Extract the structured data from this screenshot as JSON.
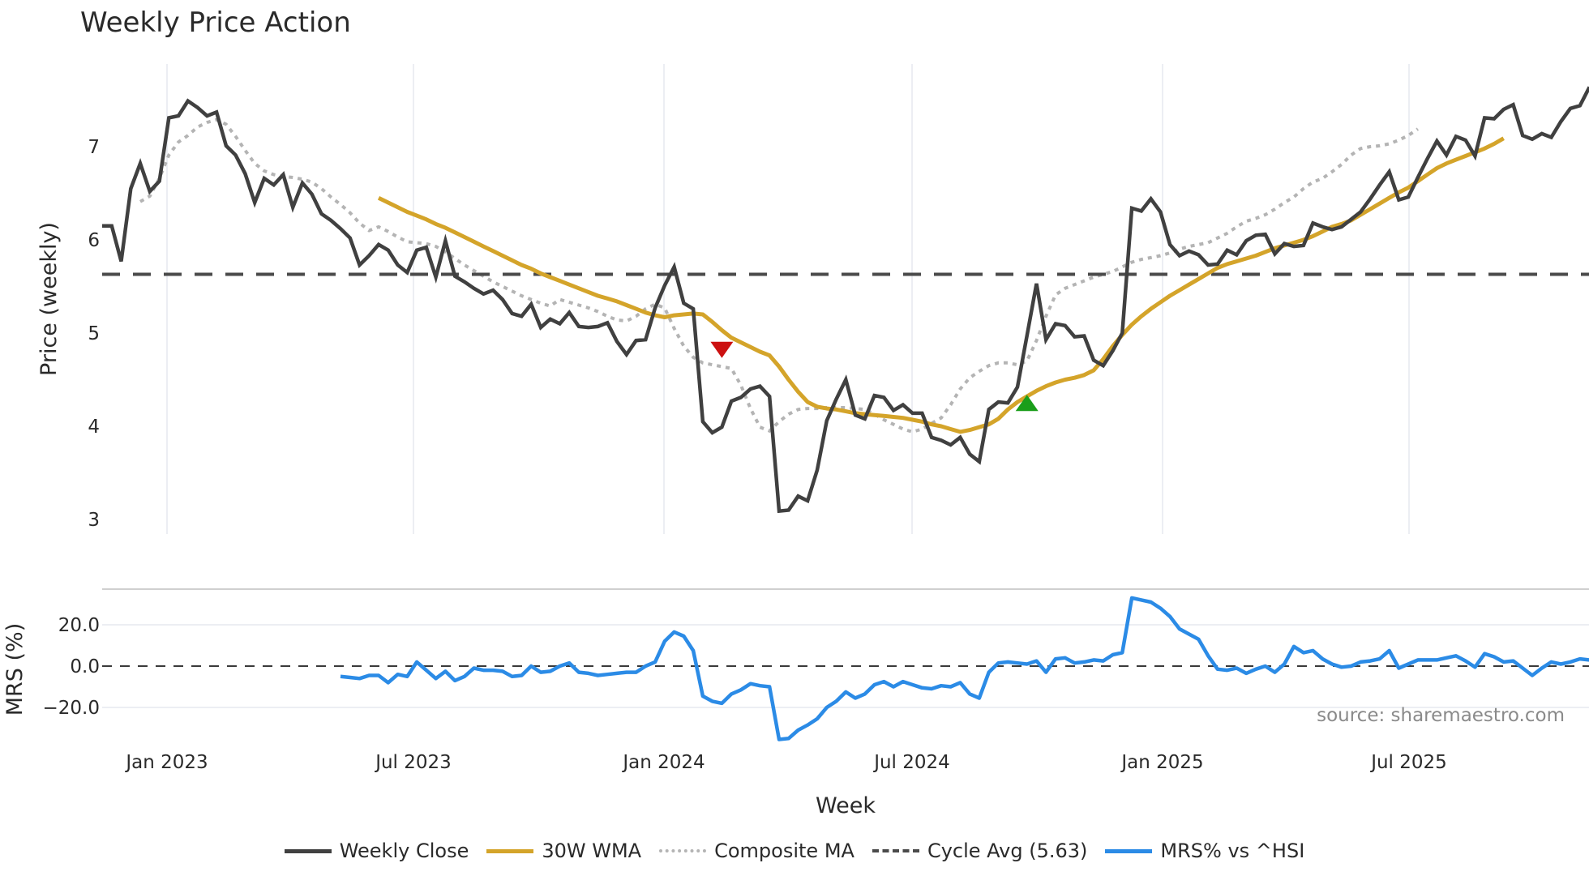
{
  "chart_title": "Weekly Price Action",
  "source_note": "source: sharemaestro.com",
  "colors": {
    "weekly_close": "#404040",
    "wma": "#d4a42a",
    "composite": "#b4b4b4",
    "cycle_avg": "#4a4a4a",
    "mrs": "#2b8be6",
    "sell_marker": "#cc1111",
    "buy_marker": "#1a9e1a",
    "grid": "#eceef3"
  },
  "legend": [
    {
      "key": "weekly_close",
      "label": "Weekly Close",
      "style": "solid"
    },
    {
      "key": "wma",
      "label": "30W WMA",
      "style": "solid"
    },
    {
      "key": "composite",
      "label": "Composite MA",
      "style": "dotted"
    },
    {
      "key": "cycle_avg",
      "label": "Cycle Avg (5.63)",
      "style": "dashed"
    },
    {
      "key": "mrs",
      "label": "MRS% vs ^HSI",
      "style": "solid"
    }
  ],
  "chart_data": [
    {
      "type": "line",
      "title": "Weekly Price Action",
      "xlabel": "Week",
      "ylabel": "Price (weekly)",
      "x_tick_labels": [
        "Jan 2023",
        "Jul 2023",
        "Jan 2024",
        "Jul 2024",
        "Jan 2025",
        "Jul 2025"
      ],
      "y_ticks": [
        3,
        4,
        5,
        6,
        7
      ],
      "ylim": [
        2.85,
        7.85
      ],
      "grid": true,
      "legend_position": "bottom",
      "x_start": "2022-12-09",
      "x_step": "1 week",
      "series": [
        {
          "name": "Weekly Close",
          "start_index": 0,
          "values": [
            6.15,
            6.15,
            5.77,
            6.55,
            6.82,
            6.52,
            6.63,
            7.31,
            7.33,
            7.49,
            7.42,
            7.33,
            7.37,
            7.01,
            6.91,
            6.71,
            6.4,
            6.66,
            6.59,
            6.7,
            6.35,
            6.61,
            6.49,
            6.28,
            6.21,
            6.12,
            6.02,
            5.73,
            5.83,
            5.95,
            5.89,
            5.73,
            5.65,
            5.89,
            5.92,
            5.6,
            5.99,
            5.61,
            5.55,
            5.48,
            5.42,
            5.46,
            5.36,
            5.21,
            5.18,
            5.31,
            5.06,
            5.15,
            5.1,
            5.22,
            5.07,
            5.06,
            5.07,
            5.11,
            4.91,
            4.77,
            4.92,
            4.93,
            5.27,
            5.51,
            5.71,
            5.32,
            5.26,
            4.05,
            3.93,
            3.99,
            4.27,
            4.31,
            4.4,
            4.43,
            4.32,
            3.09,
            3.1,
            3.25,
            3.2,
            3.53,
            4.06,
            4.29,
            4.5,
            4.12,
            4.08,
            4.33,
            4.31,
            4.17,
            4.23,
            4.14,
            4.14,
            3.88,
            3.85,
            3.8,
            3.88,
            3.7,
            3.62,
            4.18,
            4.26,
            4.25,
            4.42,
            4.97,
            5.53,
            4.93,
            5.1,
            5.08,
            4.96,
            4.97,
            4.71,
            4.65,
            4.81,
            5.0,
            6.34,
            6.31,
            6.44,
            6.3,
            5.95,
            5.83,
            5.88,
            5.84,
            5.73,
            5.74,
            5.89,
            5.84,
            5.99,
            6.05,
            6.06,
            5.85,
            5.96,
            5.93,
            5.94,
            6.18,
            6.14,
            6.11,
            6.14,
            6.22,
            6.3,
            6.44,
            6.59,
            6.73,
            6.43,
            6.46,
            6.67,
            6.87,
            7.06,
            6.91,
            7.11,
            7.07,
            6.9,
            7.31,
            7.3,
            7.4,
            7.45,
            7.12,
            7.08,
            7.14,
            7.1,
            7.27,
            7.41,
            7.44,
            7.64
          ]
        },
        {
          "name": "30W WMA",
          "start_index": 29,
          "values": [
            6.45,
            6.4,
            6.35,
            6.3,
            6.26,
            6.22,
            6.17,
            6.13,
            6.08,
            6.03,
            5.98,
            5.93,
            5.88,
            5.83,
            5.78,
            5.73,
            5.69,
            5.64,
            5.6,
            5.56,
            5.52,
            5.48,
            5.44,
            5.4,
            5.37,
            5.34,
            5.3,
            5.26,
            5.22,
            5.19,
            5.17,
            5.19,
            5.2,
            5.21,
            5.2,
            5.12,
            5.03,
            4.95,
            4.9,
            4.85,
            4.8,
            4.76,
            4.64,
            4.5,
            4.37,
            4.26,
            4.21,
            4.19,
            4.18,
            4.16,
            4.14,
            4.13,
            4.12,
            4.11,
            4.1,
            4.09,
            4.07,
            4.05,
            4.02,
            4.0,
            3.97,
            3.94,
            3.96,
            3.99,
            4.02,
            4.08,
            4.18,
            4.26,
            4.32,
            4.38,
            4.43,
            4.47,
            4.5,
            4.52,
            4.55,
            4.6,
            4.72,
            4.86,
            4.98,
            5.09,
            5.18,
            5.26,
            5.33,
            5.4,
            5.46,
            5.52,
            5.58,
            5.64,
            5.7,
            5.74,
            5.77,
            5.8,
            5.83,
            5.87,
            5.91,
            5.94,
            5.97,
            6.0,
            6.04,
            6.09,
            6.14,
            6.17,
            6.21,
            6.27,
            6.33,
            6.39,
            6.45,
            6.51,
            6.56,
            6.63,
            6.7,
            6.77,
            6.82,
            6.86,
            6.9,
            6.94,
            6.98,
            7.03,
            7.09
          ]
        },
        {
          "name": "Composite MA",
          "start_index": 4,
          "values": [
            6.41,
            6.47,
            6.66,
            6.91,
            7.05,
            7.12,
            7.21,
            7.26,
            7.29,
            7.24,
            7.11,
            6.96,
            6.82,
            6.74,
            6.7,
            6.68,
            6.67,
            6.65,
            6.62,
            6.55,
            6.46,
            6.38,
            6.29,
            6.18,
            6.1,
            6.14,
            6.09,
            6.03,
            5.98,
            5.97,
            5.96,
            5.93,
            5.87,
            5.8,
            5.73,
            5.67,
            5.61,
            5.55,
            5.5,
            5.45,
            5.4,
            5.36,
            5.32,
            5.29,
            5.36,
            5.33,
            5.3,
            5.27,
            5.23,
            5.18,
            5.14,
            5.13,
            5.18,
            5.26,
            5.31,
            5.27,
            5.05,
            4.86,
            4.74,
            4.68,
            4.66,
            4.64,
            4.62,
            4.44,
            4.19,
            3.99,
            3.95,
            4.05,
            4.13,
            4.18,
            4.19,
            4.19,
            4.2,
            4.2,
            4.2,
            4.19,
            4.18,
            4.13,
            4.07,
            4.02,
            3.97,
            3.94,
            3.97,
            4.03,
            4.09,
            4.23,
            4.4,
            4.52,
            4.59,
            4.65,
            4.68,
            4.68,
            4.66,
            4.7,
            4.92,
            5.18,
            5.41,
            5.48,
            5.52,
            5.56,
            5.6,
            5.63,
            5.66,
            5.71,
            5.76,
            5.79,
            5.81,
            5.83,
            5.86,
            5.9,
            5.93,
            5.95,
            5.97,
            6.02,
            6.07,
            6.14,
            6.2,
            6.23,
            6.27,
            6.33,
            6.4,
            6.46,
            6.55,
            6.62,
            6.66,
            6.73,
            6.81,
            6.91,
            6.98,
            7.0,
            7.01,
            7.03,
            7.07,
            7.12,
            7.19
          ]
        },
        {
          "name": "Cycle Avg (5.63)",
          "constant": 5.63
        },
        {
          "name": "Sell signal",
          "marker": "triangle-down",
          "index": 65,
          "value": 4.82
        },
        {
          "name": "Buy signal",
          "marker": "triangle-up",
          "index": 97,
          "value": 4.25
        }
      ]
    },
    {
      "type": "line",
      "ylabel": "MRS (%)",
      "y_ticks": [
        -20.0,
        0.0,
        20.0
      ],
      "ylim": [
        -37,
        37
      ],
      "zero_line": "dashed",
      "series": [
        {
          "name": "MRS% vs ^HSI",
          "start_index": 25,
          "values": [
            -5,
            -5.5,
            -6,
            -4.5,
            -4.5,
            -8,
            -4,
            -5,
            2,
            -2,
            -6,
            -2.5,
            -7,
            -5,
            -1,
            -2,
            -2,
            -2.5,
            -5,
            -4.5,
            0,
            -3,
            -2.5,
            0,
            1.5,
            -3,
            -3.5,
            -4.5,
            -4,
            -3.5,
            -3,
            -3,
            0,
            2,
            12,
            16.5,
            14.5,
            7.5,
            -14.5,
            -17,
            -18,
            -13.5,
            -11.5,
            -8.5,
            -9.5,
            -10,
            -35.5,
            -35,
            -31,
            -28.5,
            -25.5,
            -20,
            -17,
            -12.5,
            -15.5,
            -13.5,
            -9,
            -7.5,
            -10,
            -7.5,
            -9,
            -10.5,
            -11,
            -9.5,
            -10,
            -8,
            -13.5,
            -15.5,
            -3,
            1.5,
            2,
            1.5,
            1,
            2.5,
            -3,
            3.5,
            4,
            1.5,
            2,
            3,
            2.5,
            5.5,
            6.5,
            33,
            32,
            31,
            28,
            24,
            18,
            15.5,
            13,
            5,
            -1.5,
            -2,
            -1,
            -3.5,
            -1.5,
            0,
            -3,
            1,
            9.5,
            6.5,
            7.5,
            3.5,
            1,
            -0.5,
            0,
            2,
            2.5,
            3.5,
            7.5,
            -1,
            1,
            3,
            3,
            3,
            4,
            5,
            2.5,
            -0.5,
            6,
            4.5,
            2,
            2.5,
            -1,
            -4.5,
            -1,
            2,
            1,
            2,
            3.5,
            3
          ]
        }
      ]
    }
  ]
}
